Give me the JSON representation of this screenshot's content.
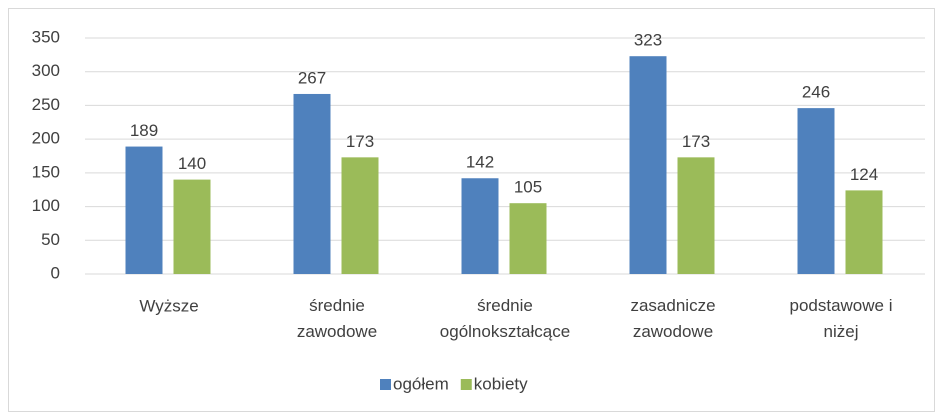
{
  "chart_data": {
    "type": "bar",
    "categories": [
      "Wyższe",
      "średnie zawodowe",
      "średnie ogólnokształcące",
      "zasadnicze zawodowe",
      "podstawowe i niżej"
    ],
    "series": [
      {
        "name": "ogółem",
        "color": "#4f81bd",
        "values": [
          189,
          267,
          142,
          323,
          246
        ]
      },
      {
        "name": "kobiety",
        "color": "#9bbb59",
        "values": [
          140,
          173,
          105,
          173,
          124
        ]
      }
    ],
    "ylim": [
      0,
      350
    ],
    "yticks": [
      0,
      50,
      100,
      150,
      200,
      250,
      300,
      350
    ],
    "grid": true,
    "legend": "bottom"
  }
}
